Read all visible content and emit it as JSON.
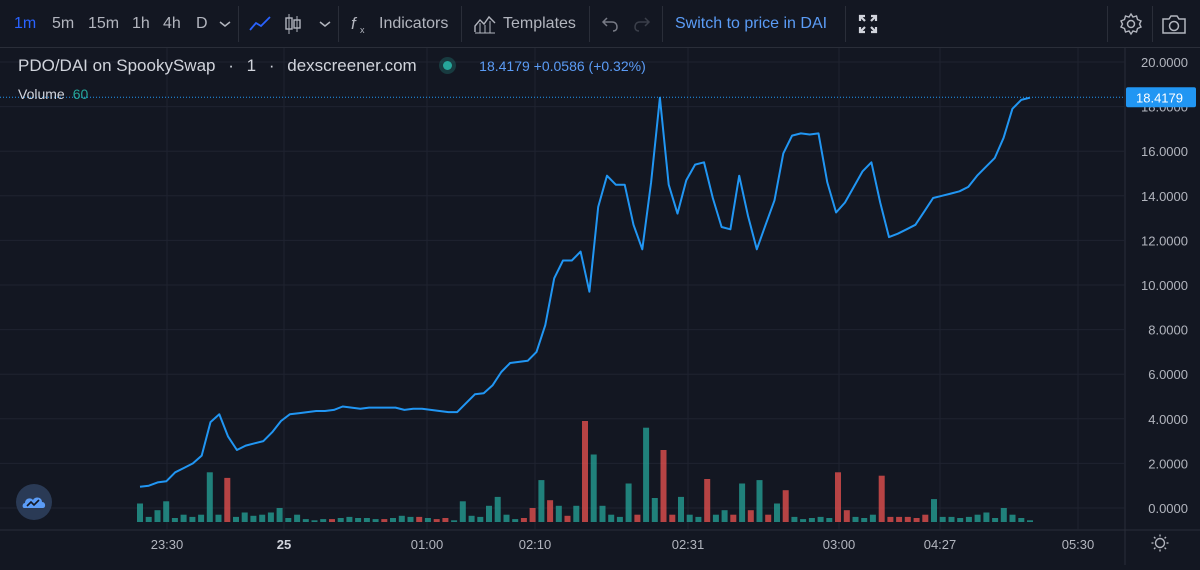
{
  "toolbar": {
    "intervals": [
      "1m",
      "5m",
      "15m",
      "1h",
      "4h",
      "D"
    ],
    "active_interval": "1m",
    "indicators_label": "Indicators",
    "templates_label": "Templates",
    "switch_label": "Switch to price in DAI"
  },
  "legend": {
    "symbol": "PDO/DAI on SpookySwap",
    "interval": "1",
    "source": "dexscreener.com",
    "values": "18.4179 +0.0586 (+0.32%)",
    "volume_label": "Volume",
    "volume_value": "60"
  },
  "colors": {
    "background": "#131722",
    "line": "#2196f3",
    "up_volume": "#26a69a",
    "down_volume": "#ef5350",
    "grid": "#1f2330"
  },
  "chart_data": {
    "type": "line",
    "last_price_label": "18.4179",
    "ylim": [
      -0.6,
      20.2
    ],
    "y_ticks": [
      "20.0000",
      "18.0000",
      "16.0000",
      "14.0000",
      "12.0000",
      "10.0000",
      "8.0000",
      "6.0000",
      "4.0000",
      "2.0000",
      "0.0000"
    ],
    "x_ticks": [
      "23:30",
      "25",
      "01:00",
      "02:10",
      "02:31",
      "03:00",
      "04:27",
      "05:30"
    ],
    "price_series": [
      0.95,
      1.0,
      1.15,
      1.2,
      1.6,
      1.8,
      2.0,
      2.35,
      3.85,
      4.2,
      3.2,
      2.6,
      2.8,
      2.9,
      3.0,
      3.4,
      3.9,
      4.2,
      4.25,
      4.3,
      4.35,
      4.35,
      4.4,
      4.55,
      4.5,
      4.45,
      4.5,
      4.5,
      4.5,
      4.5,
      4.4,
      4.45,
      4.45,
      4.4,
      4.35,
      4.3,
      4.3,
      4.7,
      5.1,
      5.15,
      5.5,
      6.1,
      6.5,
      6.55,
      6.6,
      7.0,
      8.2,
      10.3,
      11.1,
      11.1,
      11.5,
      9.7,
      13.5,
      14.9,
      14.5,
      14.5,
      12.7,
      11.6,
      14.6,
      18.4,
      14.5,
      13.2,
      14.7,
      15.4,
      15.5,
      13.9,
      12.6,
      12.5,
      14.9,
      13.1,
      11.6,
      12.7,
      13.8,
      15.9,
      16.7,
      16.8,
      16.75,
      16.8,
      14.6,
      13.25,
      13.7,
      14.4,
      15.1,
      15.5,
      13.7,
      12.15,
      12.3,
      12.5,
      12.7,
      13.3,
      13.9,
      14.0,
      14.1,
      14.2,
      14.4,
      14.9,
      15.3,
      15.7,
      16.6,
      17.9,
      18.3,
      18.4
    ],
    "volume_series": [
      0.8,
      0.2,
      0.5,
      0.9,
      0.15,
      0.3,
      0.2,
      0.3,
      2.2,
      0.3,
      1.95,
      0.2,
      0.4,
      0.25,
      0.3,
      0.4,
      0.6,
      0.15,
      0.3,
      0.1,
      0.05,
      0.1,
      0.1,
      0.15,
      0.2,
      0.15,
      0.15,
      0.1,
      0.1,
      0.15,
      0.25,
      0.2,
      0.2,
      0.15,
      0.1,
      0.15,
      0.05,
      0.9,
      0.25,
      0.2,
      0.7,
      1.1,
      0.3,
      0.1,
      0.15,
      0.6,
      1.85,
      0.95,
      0.7,
      0.25,
      0.7,
      4.5,
      3.0,
      0.7,
      0.3,
      0.2,
      1.7,
      0.3,
      4.2,
      1.05,
      3.2,
      0.3,
      1.1,
      0.3,
      0.2,
      1.9,
      0.3,
      0.5,
      0.3,
      1.7,
      0.5,
      1.85,
      0.3,
      0.8,
      1.4,
      0.2,
      0.1,
      0.15,
      0.2,
      0.15,
      2.2,
      0.5,
      0.2,
      0.15,
      0.3,
      2.05,
      0.2,
      0.2,
      0.2,
      0.15,
      0.3,
      1.0,
      0.2,
      0.2,
      0.15,
      0.2,
      0.3,
      0.4,
      0.15,
      0.6,
      0.3,
      0.15,
      0.05
    ],
    "volume_down": [
      10,
      22,
      28,
      32,
      34,
      35,
      44,
      45,
      47,
      49,
      51,
      57,
      60,
      61,
      65,
      68,
      70,
      72,
      74,
      80,
      81,
      85,
      86,
      87,
      88,
      89,
      90
    ]
  }
}
